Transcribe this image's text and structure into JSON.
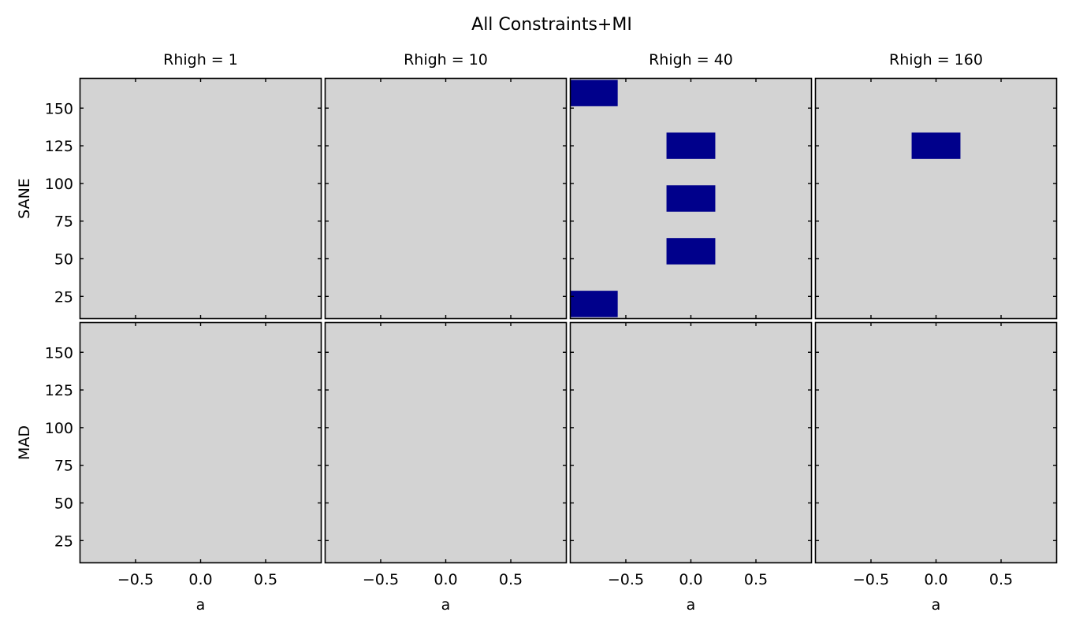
{
  "figure": {
    "title": "All Constraints+MI",
    "row_labels": [
      "SANE",
      "MAD"
    ],
    "column_titles": [
      "Rhigh = 1",
      "Rhigh = 10",
      "Rhigh = 40",
      "Rhigh = 160"
    ],
    "xlabel": "a"
  },
  "colors": {
    "background": "#d3d3d3",
    "cell": "#00008b",
    "frame": "#000000"
  },
  "chart_data": {
    "type": "heatmap",
    "title": "All Constraints+MI",
    "xlabel": "a",
    "xlim": [
      -0.93,
      0.93
    ],
    "ylim": [
      10,
      170
    ],
    "xticks": [
      -0.5,
      0.0,
      0.5
    ],
    "xtick_labels": [
      "−0.5",
      "0.0",
      "0.5"
    ],
    "yticks": [
      25,
      50,
      75,
      100,
      125,
      150
    ],
    "ytick_labels": [
      "25",
      "50",
      "75",
      "100",
      "125",
      "150"
    ],
    "a_values": [
      -0.75,
      0.0
    ],
    "cell_width_a": 0.375,
    "cell_height": 17.5,
    "grid": false,
    "panels": [
      {
        "row": "SANE",
        "rhigh": 1,
        "title": "Rhigh = 1",
        "cells": []
      },
      {
        "row": "SANE",
        "rhigh": 10,
        "title": "Rhigh = 10",
        "cells": []
      },
      {
        "row": "SANE",
        "rhigh": 40,
        "title": "Rhigh = 40",
        "cells": [
          {
            "a": -0.75,
            "y": 160
          },
          {
            "a": 0.0,
            "y": 125
          },
          {
            "a": 0.0,
            "y": 90
          },
          {
            "a": 0.0,
            "y": 55
          },
          {
            "a": -0.75,
            "y": 20
          }
        ]
      },
      {
        "row": "SANE",
        "rhigh": 160,
        "title": "Rhigh = 160",
        "cells": [
          {
            "a": 0.0,
            "y": 125
          }
        ]
      },
      {
        "row": "MAD",
        "rhigh": 1,
        "title": "Rhigh = 1",
        "cells": []
      },
      {
        "row": "MAD",
        "rhigh": 10,
        "title": "Rhigh = 10",
        "cells": []
      },
      {
        "row": "MAD",
        "rhigh": 40,
        "title": "Rhigh = 40",
        "cells": []
      },
      {
        "row": "MAD",
        "rhigh": 160,
        "title": "Rhigh = 160",
        "cells": []
      }
    ]
  }
}
